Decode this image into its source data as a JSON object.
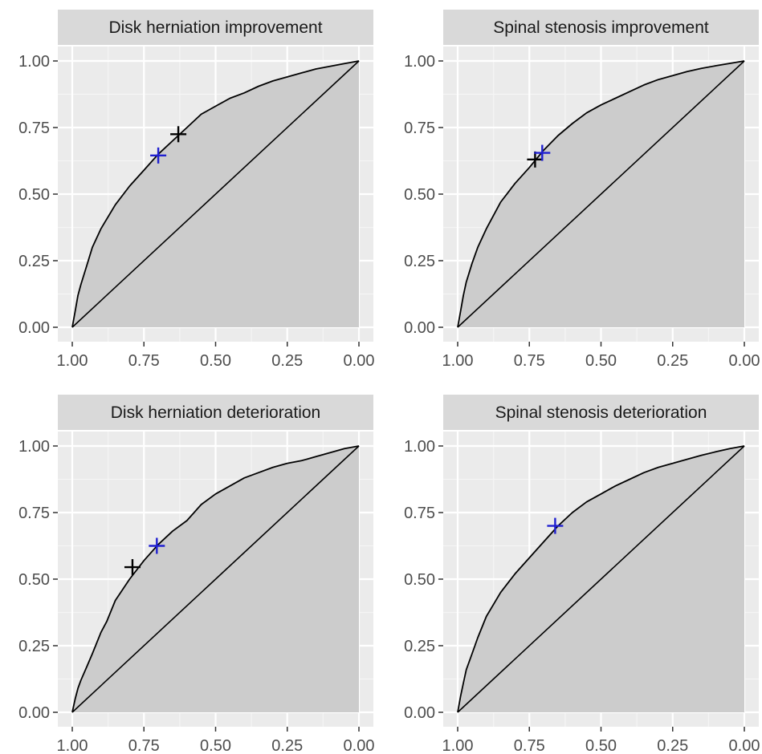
{
  "chart_data": [
    {
      "type": "area",
      "title": "Disk herniation improvement",
      "x_reversed": true,
      "xlim": [
        1.0,
        0.0
      ],
      "ylim": [
        0.0,
        1.0
      ],
      "x_ticks": [
        "1.00",
        "0.75",
        "0.50",
        "0.25",
        "0.00"
      ],
      "y_ticks": [
        "0.00",
        "0.25",
        "0.50",
        "0.75",
        "1.00"
      ],
      "grid": true,
      "series": [
        {
          "kind": "roc_curve",
          "x": [
            1.0,
            0.99,
            0.98,
            0.97,
            0.95,
            0.93,
            0.9,
            0.85,
            0.8,
            0.75,
            0.7,
            0.65,
            0.6,
            0.55,
            0.5,
            0.45,
            0.4,
            0.35,
            0.3,
            0.25,
            0.2,
            0.15,
            0.1,
            0.05,
            0.0
          ],
          "y": [
            0.0,
            0.06,
            0.12,
            0.16,
            0.23,
            0.3,
            0.37,
            0.46,
            0.53,
            0.59,
            0.65,
            0.7,
            0.75,
            0.8,
            0.83,
            0.86,
            0.88,
            0.905,
            0.925,
            0.94,
            0.955,
            0.97,
            0.98,
            0.99,
            1.0
          ]
        },
        {
          "kind": "diagonal",
          "x": [
            1.0,
            0.0
          ],
          "y": [
            0.0,
            1.0
          ]
        }
      ],
      "markers": [
        {
          "x": 0.63,
          "y": 0.725,
          "color": "#000000"
        },
        {
          "x": 0.7,
          "y": 0.645,
          "color": "#1f1fd0"
        }
      ]
    },
    {
      "type": "area",
      "title": "Spinal stenosis improvement",
      "x_reversed": true,
      "xlim": [
        1.0,
        0.0
      ],
      "ylim": [
        0.0,
        1.0
      ],
      "x_ticks": [
        "1.00",
        "0.75",
        "0.50",
        "0.25",
        "0.00"
      ],
      "y_ticks": [
        "0.00",
        "0.25",
        "0.50",
        "0.75",
        "1.00"
      ],
      "grid": true,
      "series": [
        {
          "kind": "roc_curve",
          "x": [
            1.0,
            0.99,
            0.98,
            0.97,
            0.95,
            0.93,
            0.9,
            0.85,
            0.8,
            0.75,
            0.7,
            0.65,
            0.6,
            0.55,
            0.5,
            0.45,
            0.4,
            0.35,
            0.3,
            0.25,
            0.2,
            0.15,
            0.1,
            0.05,
            0.0
          ],
          "y": [
            0.0,
            0.06,
            0.12,
            0.17,
            0.24,
            0.3,
            0.37,
            0.47,
            0.54,
            0.6,
            0.665,
            0.72,
            0.765,
            0.805,
            0.835,
            0.86,
            0.885,
            0.91,
            0.93,
            0.945,
            0.96,
            0.972,
            0.982,
            0.991,
            1.0
          ]
        },
        {
          "kind": "diagonal",
          "x": [
            1.0,
            0.0
          ],
          "y": [
            0.0,
            1.0
          ]
        }
      ],
      "markers": [
        {
          "x": 0.73,
          "y": 0.63,
          "color": "#000000"
        },
        {
          "x": 0.705,
          "y": 0.655,
          "color": "#1f1fd0"
        }
      ]
    },
    {
      "type": "area",
      "title": "Disk herniation deterioration",
      "x_reversed": true,
      "xlim": [
        1.0,
        0.0
      ],
      "ylim": [
        0.0,
        1.0
      ],
      "x_ticks": [
        "1.00",
        "0.75",
        "0.50",
        "0.25",
        "0.00"
      ],
      "y_ticks": [
        "0.00",
        "0.25",
        "0.50",
        "0.75",
        "1.00"
      ],
      "grid": true,
      "series": [
        {
          "kind": "roc_curve",
          "x": [
            1.0,
            0.99,
            0.98,
            0.97,
            0.95,
            0.93,
            0.9,
            0.88,
            0.85,
            0.8,
            0.75,
            0.7,
            0.65,
            0.6,
            0.55,
            0.5,
            0.45,
            0.4,
            0.35,
            0.3,
            0.25,
            0.2,
            0.15,
            0.1,
            0.05,
            0.0
          ],
          "y": [
            0.0,
            0.05,
            0.09,
            0.12,
            0.17,
            0.22,
            0.3,
            0.34,
            0.42,
            0.5,
            0.57,
            0.63,
            0.68,
            0.72,
            0.78,
            0.82,
            0.85,
            0.88,
            0.9,
            0.92,
            0.935,
            0.945,
            0.96,
            0.975,
            0.99,
            1.0
          ]
        },
        {
          "kind": "diagonal",
          "x": [
            1.0,
            0.0
          ],
          "y": [
            0.0,
            1.0
          ]
        }
      ],
      "markers": [
        {
          "x": 0.79,
          "y": 0.545,
          "color": "#000000"
        },
        {
          "x": 0.705,
          "y": 0.625,
          "color": "#1f1fd0"
        }
      ]
    },
    {
      "type": "area",
      "title": "Spinal stenosis deterioration",
      "x_reversed": true,
      "xlim": [
        1.0,
        0.0
      ],
      "ylim": [
        0.0,
        1.0
      ],
      "x_ticks": [
        "1.00",
        "0.75",
        "0.50",
        "0.25",
        "0.00"
      ],
      "y_ticks": [
        "0.00",
        "0.25",
        "0.50",
        "0.75",
        "1.00"
      ],
      "grid": true,
      "series": [
        {
          "kind": "roc_curve",
          "x": [
            1.0,
            0.99,
            0.98,
            0.97,
            0.95,
            0.93,
            0.9,
            0.85,
            0.8,
            0.75,
            0.7,
            0.65,
            0.6,
            0.55,
            0.5,
            0.45,
            0.4,
            0.35,
            0.3,
            0.25,
            0.2,
            0.15,
            0.1,
            0.05,
            0.0
          ],
          "y": [
            0.0,
            0.06,
            0.11,
            0.16,
            0.22,
            0.28,
            0.36,
            0.45,
            0.52,
            0.58,
            0.64,
            0.7,
            0.75,
            0.79,
            0.82,
            0.85,
            0.875,
            0.9,
            0.92,
            0.935,
            0.95,
            0.965,
            0.978,
            0.99,
            1.0
          ]
        },
        {
          "kind": "diagonal",
          "x": [
            1.0,
            0.0
          ],
          "y": [
            0.0,
            1.0
          ]
        }
      ],
      "markers": [
        {
          "x": 0.66,
          "y": 0.7,
          "color": "#1f1fd0"
        }
      ]
    }
  ],
  "colors": {
    "panel_background": "#ebebeb",
    "grid_major": "#ffffff",
    "grid_minor": "#f5f5f5",
    "strip_background": "#d9d9d9",
    "fill": "#cccccc",
    "line": "#000000",
    "tick_text": "#4d4d4d",
    "tick_mark": "#333333"
  }
}
